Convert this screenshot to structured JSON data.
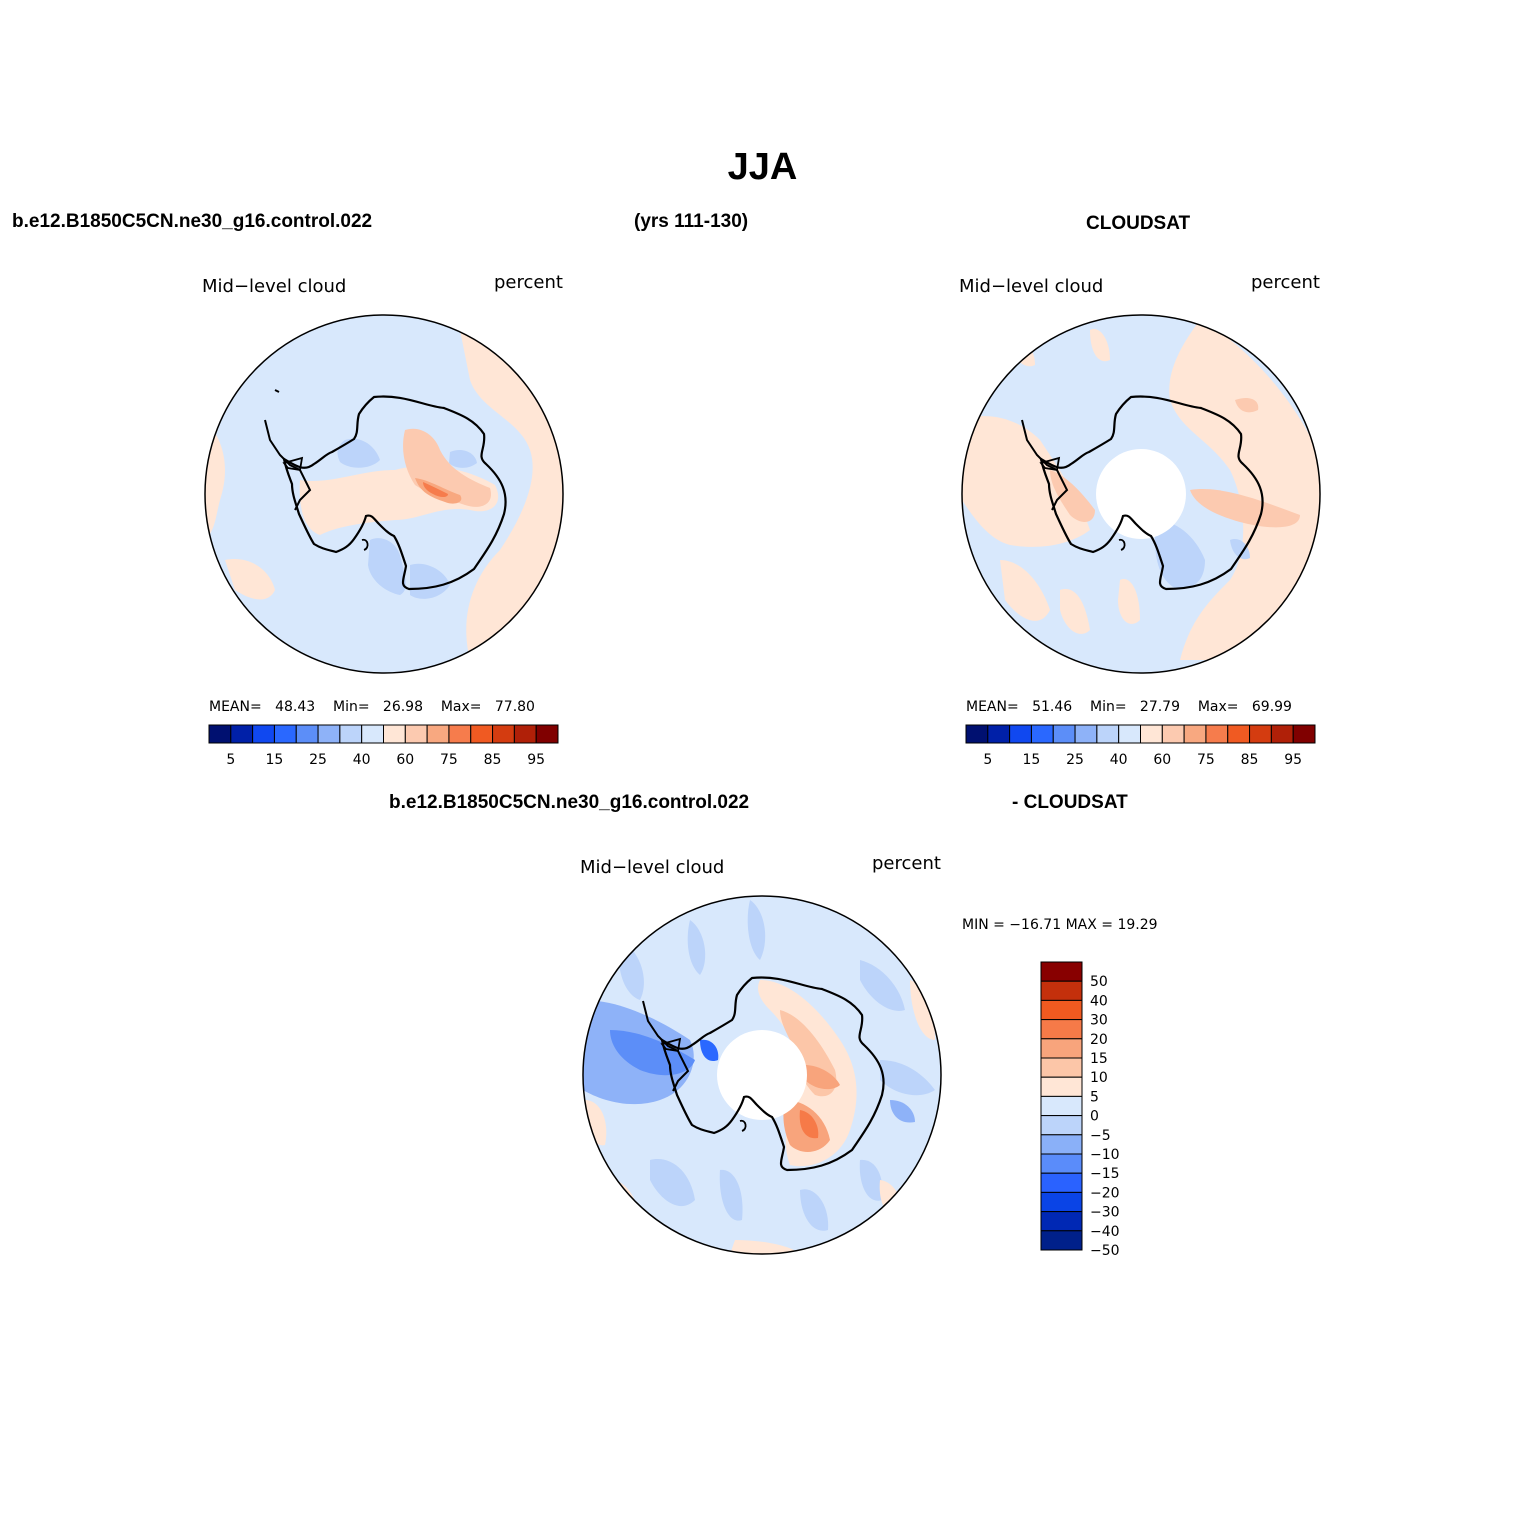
{
  "title": "JJA",
  "case_name": "b.e12.B1850C5CN.ne30_g16.control.022",
  "years": "(yrs 111-130)",
  "obs_name": "CLOUDSAT",
  "colors": {
    "abs_scale": [
      "#001070",
      "#0020a8",
      "#1048f0",
      "#2a68ff",
      "#5c8ef8",
      "#8eb2f8",
      "#bcd4fa",
      "#d8e8fc",
      "#ffe6d6",
      "#fccab0",
      "#f8a880",
      "#f67c4c",
      "#f05a22",
      "#d43c10",
      "#b02008",
      "#800000"
    ],
    "diff_scale": [
      "#00208a",
      "#0028b4",
      "#0a44e6",
      "#2a62ff",
      "#5a8cfa",
      "#8ab0f8",
      "#bcd4fa",
      "#d8e8fc",
      "#ffe6d6",
      "#fcc6a8",
      "#f8a47c",
      "#f67a48",
      "#f05a20",
      "#c4300c",
      "#880000"
    ],
    "coast": "#000000"
  },
  "panels": [
    {
      "id": "model",
      "variable": "Mid−level cloud",
      "units": "percent",
      "mean_label": "MEAN=",
      "mean": "48.43",
      "min_label": "Min=",
      "min": "26.98",
      "max_label": "Max=",
      "max": "77.80",
      "colorbar_labels": [
        "5",
        "15",
        "25",
        "40",
        "60",
        "75",
        "85",
        "95"
      ]
    },
    {
      "id": "obs",
      "variable": "Mid−level cloud",
      "units": "percent",
      "mean_label": "MEAN=",
      "mean": "51.46",
      "min_label": "Min=",
      "min": "27.79",
      "max_label": "Max=",
      "max": "69.99",
      "colorbar_labels": [
        "5",
        "15",
        "25",
        "40",
        "60",
        "75",
        "85",
        "95"
      ]
    }
  ],
  "difference": {
    "case_name": "b.e12.B1850C5CN.ne30_g16.control.022",
    "obs_name": "- CLOUDSAT",
    "variable": "Mid−level cloud",
    "units": "percent",
    "minmax": "MIN = −16.71  MAX =   19.29",
    "colorbar_labels": [
      "50",
      "40",
      "30",
      "20",
      "15",
      "10",
      "5",
      "0",
      "−5",
      "−10",
      "−15",
      "−20",
      "−30",
      "−40",
      "−50"
    ]
  }
}
